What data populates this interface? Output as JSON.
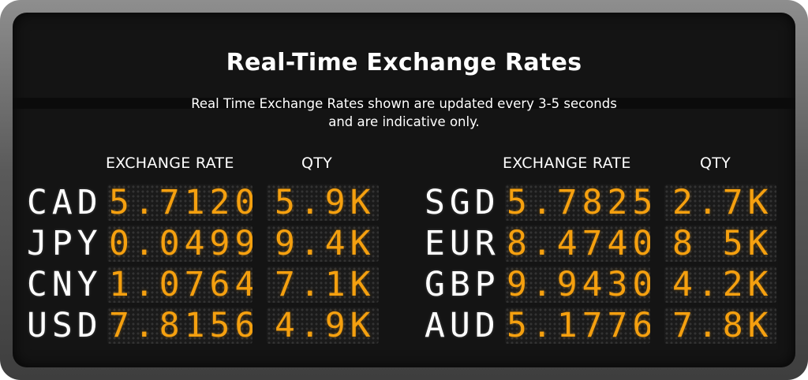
{
  "board": {
    "title": "Real-Time Exchange Rates",
    "subtitle_line1": "Real Time Exchange Rates shown are updated every 3-5 seconds",
    "subtitle_line2": "and are indicative only.",
    "columns": {
      "rate": "EXCHANGE RATE",
      "qty": "QTY"
    },
    "left": [
      {
        "code": "CAD",
        "rate": "5.7120",
        "qty": "5.9K"
      },
      {
        "code": "JPY",
        "rate": "0.0499",
        "qty": "9.4K"
      },
      {
        "code": "CNY",
        "rate": "1.0764",
        "qty": "7.1K"
      },
      {
        "code": "USD",
        "rate": "7.8156",
        "qty": "4.9K"
      }
    ],
    "right": [
      {
        "code": "SGD",
        "rate": "5.7825",
        "qty": "2.7K"
      },
      {
        "code": "EUR",
        "rate": "8.4740",
        "qty": "8 5K"
      },
      {
        "code": "GBP",
        "rate": "9.9430",
        "qty": "4.2K"
      },
      {
        "code": "AUD",
        "rate": "5.1776",
        "qty": "7.8K"
      }
    ]
  },
  "colors": {
    "code": "#ffffff",
    "value": "#f5a00f",
    "board": "#141414",
    "frame": "#6b6b6b"
  }
}
